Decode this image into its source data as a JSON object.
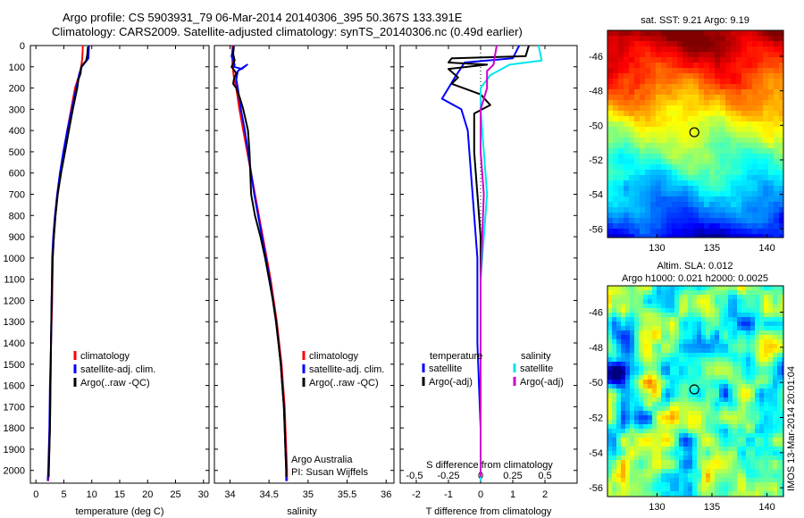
{
  "header": {
    "line1": "Argo profile: CS 5903931_79 06-Mar-2014 20140306_395 50.367S 133.391E",
    "line2": "Climatology: CARS2009. Satellite-adjusted climatology: synTS_20140306.nc (0.49d earlier)"
  },
  "colors": {
    "climatology": "#ff0000",
    "satellite": "#0000ff",
    "argo": "#000000",
    "sal_sat": "#00e5ee",
    "sal_argo": "#cc00cc"
  },
  "chart_data": [
    {
      "type": "line",
      "xlabel": "temperature (deg C)",
      "xlim": [
        -1,
        31
      ],
      "ylim": [
        2060,
        0
      ],
      "xticks": [
        0,
        5,
        10,
        15,
        20,
        25,
        30
      ],
      "yticks": [
        0,
        100,
        200,
        300,
        400,
        500,
        600,
        700,
        800,
        900,
        1000,
        1100,
        1200,
        1300,
        1400,
        1500,
        1600,
        1700,
        1800,
        1900,
        2000
      ],
      "legend": [
        "climatology",
        "satellite-adj. clim.",
        "Argo(..raw -QC)"
      ],
      "series": [
        {
          "name": "climatology",
          "color": "#ff0000",
          "points": [
            [
              8.4,
              0
            ],
            [
              8.3,
              60
            ],
            [
              8.1,
              100
            ],
            [
              7.6,
              150
            ],
            [
              7.0,
              200
            ],
            [
              6.3,
              300
            ],
            [
              5.6,
              400
            ],
            [
              5.0,
              500
            ],
            [
              4.4,
              600
            ],
            [
              3.9,
              700
            ],
            [
              3.5,
              800
            ],
            [
              3.2,
              900
            ],
            [
              3.0,
              1000
            ],
            [
              2.9,
              1200
            ],
            [
              2.7,
              1400
            ],
            [
              2.6,
              1600
            ],
            [
              2.5,
              1800
            ],
            [
              2.3,
              2000
            ],
            [
              2.2,
              2050
            ]
          ]
        },
        {
          "name": "satellite-adj. clim.",
          "color": "#0000ff",
          "points": [
            [
              9.5,
              0
            ],
            [
              9.4,
              60
            ],
            [
              8.2,
              100
            ],
            [
              7.8,
              130
            ],
            [
              7.2,
              200
            ],
            [
              6.4,
              300
            ],
            [
              5.6,
              400
            ],
            [
              4.9,
              500
            ],
            [
              4.3,
              600
            ],
            [
              3.8,
              700
            ],
            [
              3.4,
              800
            ],
            [
              3.1,
              900
            ],
            [
              2.9,
              1000
            ],
            [
              2.8,
              1200
            ],
            [
              2.7,
              1400
            ],
            [
              2.5,
              1600
            ],
            [
              2.4,
              1800
            ],
            [
              2.2,
              2000
            ],
            [
              2.1,
              2050
            ]
          ]
        },
        {
          "name": "Argo(..raw -QC)",
          "color": "#000000",
          "points": [
            [
              9.3,
              5
            ],
            [
              9.2,
              40
            ],
            [
              9.0,
              70
            ],
            [
              8.1,
              100
            ],
            [
              8.0,
              130
            ],
            [
              7.6,
              160
            ],
            [
              7.4,
              200
            ],
            [
              6.6,
              300
            ],
            [
              5.9,
              400
            ],
            [
              5.2,
              500
            ],
            [
              4.5,
              600
            ],
            [
              3.9,
              700
            ],
            [
              3.5,
              800
            ],
            [
              3.2,
              900
            ],
            [
              3.0,
              1000
            ],
            [
              2.9,
              1100
            ],
            [
              2.8,
              1200
            ],
            [
              2.7,
              1400
            ],
            [
              2.6,
              1600
            ],
            [
              2.5,
              1800
            ],
            [
              2.3,
              2000
            ],
            [
              2.3,
              2030
            ]
          ]
        }
      ]
    },
    {
      "type": "line",
      "xlabel": "salinity",
      "xlim": [
        33.8,
        36.1
      ],
      "ylim": [
        2060,
        0
      ],
      "xticks": [
        34,
        34.5,
        35,
        35.5,
        36
      ],
      "legend": [
        "climatology",
        "satellite-adj. clim.",
        "Argo(..raw -QC)"
      ],
      "annotation": [
        "Argo Australia",
        "PI: Susan Wijffels"
      ],
      "series": [
        {
          "name": "climatology",
          "color": "#ff0000",
          "points": [
            [
              34.03,
              0
            ],
            [
              34.03,
              80
            ],
            [
              34.05,
              150
            ],
            [
              34.08,
              200
            ],
            [
              34.12,
              300
            ],
            [
              34.17,
              400
            ],
            [
              34.22,
              500
            ],
            [
              34.27,
              600
            ],
            [
              34.32,
              700
            ],
            [
              34.37,
              800
            ],
            [
              34.42,
              900
            ],
            [
              34.47,
              1000
            ],
            [
              34.52,
              1100
            ],
            [
              34.56,
              1200
            ],
            [
              34.6,
              1300
            ],
            [
              34.63,
              1400
            ],
            [
              34.66,
              1500
            ],
            [
              34.68,
              1600
            ],
            [
              34.7,
              1700
            ],
            [
              34.71,
              1800
            ],
            [
              34.72,
              1900
            ],
            [
              34.73,
              2000
            ],
            [
              34.73,
              2050
            ]
          ]
        },
        {
          "name": "satellite-adj. clim.",
          "color": "#0000ff",
          "points": [
            [
              34.05,
              0
            ],
            [
              34.02,
              50
            ],
            [
              34.06,
              90
            ],
            [
              34.05,
              100
            ],
            [
              34.15,
              110
            ],
            [
              34.22,
              90
            ],
            [
              34.1,
              120
            ],
            [
              34.08,
              160
            ],
            [
              34.1,
              200
            ],
            [
              34.14,
              300
            ],
            [
              34.19,
              400
            ],
            [
              34.23,
              500
            ],
            [
              34.27,
              600
            ],
            [
              34.31,
              700
            ],
            [
              34.36,
              800
            ],
            [
              34.41,
              900
            ],
            [
              34.46,
              1000
            ],
            [
              34.51,
              1100
            ],
            [
              34.55,
              1200
            ],
            [
              34.59,
              1300
            ],
            [
              34.62,
              1400
            ],
            [
              34.65,
              1500
            ],
            [
              34.67,
              1600
            ],
            [
              34.69,
              1700
            ],
            [
              34.7,
              1800
            ],
            [
              34.71,
              1900
            ],
            [
              34.72,
              2000
            ],
            [
              34.72,
              2050
            ]
          ]
        },
        {
          "name": "Argo(..raw -QC)",
          "color": "#000000",
          "points": [
            [
              34.05,
              5
            ],
            [
              34.04,
              40
            ],
            [
              34.06,
              70
            ],
            [
              34.02,
              100
            ],
            [
              34.08,
              130
            ],
            [
              34.05,
              160
            ],
            [
              34.04,
              180
            ],
            [
              34.08,
              200
            ],
            [
              34.13,
              250
            ],
            [
              34.17,
              300
            ],
            [
              34.2,
              350
            ],
            [
              34.23,
              400
            ],
            [
              34.25,
              500
            ],
            [
              34.26,
              600
            ],
            [
              34.27,
              700
            ],
            [
              34.32,
              800
            ],
            [
              34.39,
              900
            ],
            [
              34.45,
              1000
            ],
            [
              34.5,
              1100
            ],
            [
              34.55,
              1200
            ],
            [
              34.59,
              1300
            ],
            [
              34.62,
              1400
            ],
            [
              34.65,
              1500
            ],
            [
              34.67,
              1600
            ],
            [
              34.69,
              1700
            ],
            [
              34.7,
              1800
            ],
            [
              34.71,
              1900
            ],
            [
              34.72,
              2000
            ],
            [
              34.72,
              2030
            ]
          ]
        }
      ]
    },
    {
      "type": "line",
      "xlabel": "T difference from climatology",
      "xlabel2": "S difference from climatology",
      "xlim": [
        -2.5,
        3.0
      ],
      "xticks": [
        -2,
        -1,
        0,
        1,
        2
      ],
      "s_xticks": [
        "-0.5",
        "-0.25",
        "0",
        "0.25",
        "0.5"
      ],
      "ylim": [
        2060,
        0
      ],
      "legend_headers": [
        "temperature",
        "salinity"
      ],
      "legend": [
        [
          "satellite",
          "Argo(-adj)"
        ],
        [
          "satellite",
          "Argo(-adj)"
        ]
      ],
      "series": [
        {
          "name": "temperature satellite",
          "color": "#0000ff",
          "points": [
            [
              1.2,
              0
            ],
            [
              1.0,
              60
            ],
            [
              -0.5,
              80
            ],
            [
              -0.8,
              150
            ],
            [
              -1.2,
              250
            ],
            [
              -0.6,
              300
            ],
            [
              -0.4,
              400
            ],
            [
              -0.3,
              600
            ],
            [
              -0.2,
              800
            ],
            [
              -0.1,
              1000
            ],
            [
              -0.1,
              1400
            ],
            [
              0,
              1800
            ],
            [
              0,
              2050
            ]
          ]
        },
        {
          "name": "temperature Argo(-adj)",
          "color": "#000000",
          "points": [
            [
              1.5,
              0
            ],
            [
              1.4,
              50
            ],
            [
              -0.9,
              60
            ],
            [
              -1.0,
              80
            ],
            [
              0.2,
              90
            ],
            [
              -1.0,
              110
            ],
            [
              -0.7,
              150
            ],
            [
              -0.9,
              180
            ],
            [
              0.0,
              230
            ],
            [
              0.3,
              280
            ],
            [
              -0.2,
              320
            ],
            [
              -0.2,
              500
            ],
            [
              -0.1,
              700
            ],
            [
              0.0,
              900
            ],
            [
              0.0,
              1400
            ],
            [
              0.0,
              2030
            ]
          ]
        },
        {
          "name": "salinity satellite",
          "color": "#00e5ee",
          "points": [
            [
              1.8,
              0
            ],
            [
              1.9,
              70
            ],
            [
              0.9,
              90
            ],
            [
              0.3,
              140
            ],
            [
              0,
              200
            ],
            [
              0,
              300
            ],
            [
              0.1,
              500
            ],
            [
              0.2,
              700
            ],
            [
              0.1,
              900
            ],
            [
              0,
              1100
            ],
            [
              0,
              1500
            ],
            [
              0,
              2050
            ]
          ]
        },
        {
          "name": "salinity Argo(-adj)",
          "color": "#cc00cc",
          "points": [
            [
              0.5,
              0
            ],
            [
              0.4,
              90
            ],
            [
              0.2,
              120
            ],
            [
              0.2,
              200
            ],
            [
              0,
              300
            ],
            [
              0,
              500
            ],
            [
              0.1,
              700
            ],
            [
              0.05,
              900
            ],
            [
              0,
              1100
            ],
            [
              0,
              1400
            ],
            [
              0,
              2030
            ]
          ]
        }
      ]
    },
    {
      "type": "heatmap",
      "title": "sat. SST: 9.21  Argo: 9.19",
      "xlim": [
        125.5,
        141.5
      ],
      "ylim": [
        -56.5,
        -44.5
      ],
      "xticks": [
        "130",
        "135",
        "140"
      ],
      "yticks": [
        "-46",
        "-48",
        "-50",
        "-52",
        "-54",
        "-56"
      ],
      "marker": [
        133.4,
        -50.4
      ]
    },
    {
      "type": "heatmap",
      "title": "Altim. SLA: 0.012",
      "subtitle": "Argo h1000: 0.021  h2000: 0.0025",
      "xlim": [
        125.5,
        141.5
      ],
      "ylim": [
        -56.5,
        -44.5
      ],
      "xticks": [
        "130",
        "135",
        "140"
      ],
      "yticks": [
        "-46",
        "-48",
        "-50",
        "-52",
        "-54",
        "-56"
      ],
      "marker": [
        133.4,
        -50.4
      ]
    }
  ],
  "side_label": "IMOS 13-Mar-2014 20:01:04"
}
